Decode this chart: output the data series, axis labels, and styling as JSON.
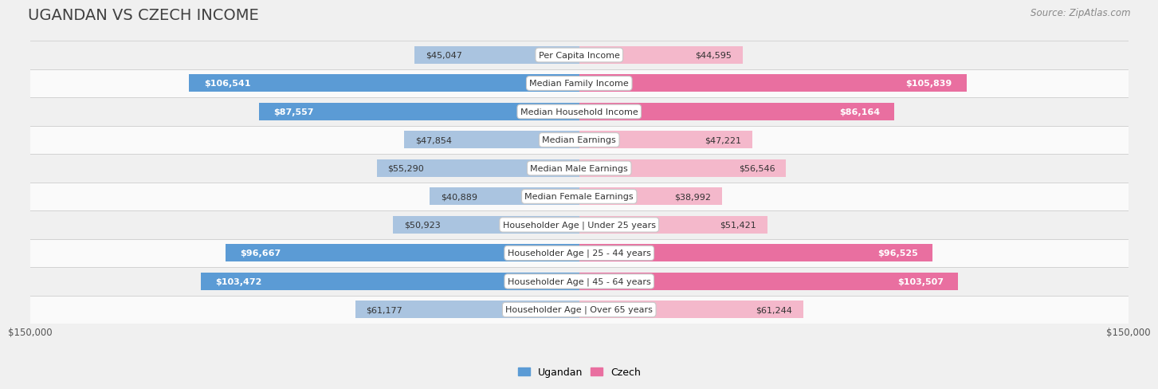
{
  "title": "UGANDAN VS CZECH INCOME",
  "source": "Source: ZipAtlas.com",
  "categories": [
    "Per Capita Income",
    "Median Family Income",
    "Median Household Income",
    "Median Earnings",
    "Median Male Earnings",
    "Median Female Earnings",
    "Householder Age | Under 25 years",
    "Householder Age | 25 - 44 years",
    "Householder Age | 45 - 64 years",
    "Householder Age | Over 65 years"
  ],
  "ugandan_values": [
    45047,
    106541,
    87557,
    47854,
    55290,
    40889,
    50923,
    96667,
    103472,
    61177
  ],
  "czech_values": [
    44595,
    105839,
    86164,
    47221,
    56546,
    38992,
    51421,
    96525,
    103507,
    61244
  ],
  "ugandan_labels": [
    "$45,047",
    "$106,541",
    "$87,557",
    "$47,854",
    "$55,290",
    "$40,889",
    "$50,923",
    "$96,667",
    "$103,472",
    "$61,177"
  ],
  "czech_labels": [
    "$44,595",
    "$105,839",
    "$86,164",
    "$47,221",
    "$56,546",
    "$38,992",
    "$51,421",
    "$96,525",
    "$103,507",
    "$61,244"
  ],
  "ugandan_color_light": "#aac4e0",
  "ugandan_color_dark": "#5b9bd5",
  "czech_color_light": "#f4b8cb",
  "czech_color_dark": "#e96fa0",
  "white_label_threshold": 75000,
  "max_value": 150000,
  "bar_height": 0.62,
  "row_colors": [
    "#f0f0f0",
    "#fafafa"
  ],
  "row_border_color": "#d0d0d0",
  "label_bg_color": "#ffffff",
  "label_border_color": "#c8c8c8",
  "title_fontsize": 14,
  "source_fontsize": 8.5,
  "value_fontsize": 8,
  "cat_fontsize": 8,
  "axis_tick_fontsize": 8.5,
  "axis_label": "$150,000",
  "legend_ugandan": "Ugandan",
  "legend_czech": "Czech",
  "legend_fontsize": 9
}
